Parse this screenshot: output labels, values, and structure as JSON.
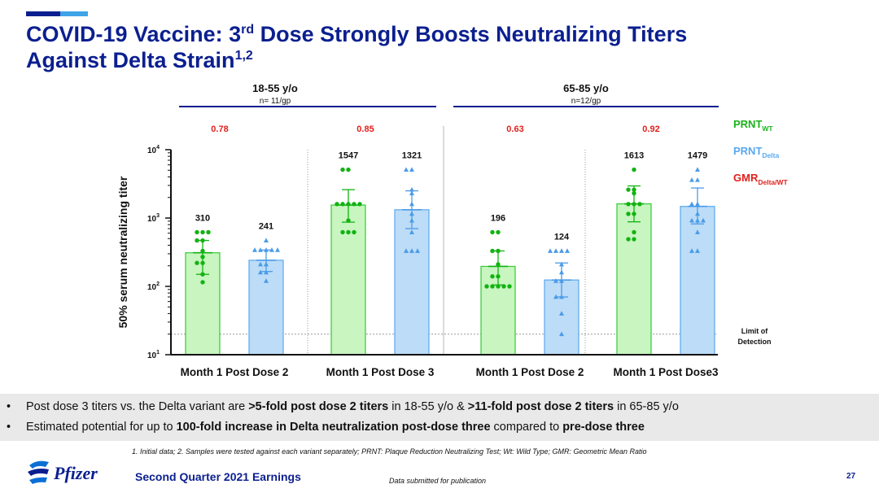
{
  "header": {
    "title_line1_pre": "COVID-19 Vaccine: 3",
    "title_line1_sup": "rd",
    "title_line1_post": " Dose Strongly Boosts Neutralizing Titers",
    "title_line2": "Against Delta Strain",
    "title_line2_sup": "1,2"
  },
  "colors": {
    "wt_fill": "#c8f5c0",
    "wt_edge": "#33cc33",
    "wt_point": "#12b312",
    "delta_fill": "#bcdcf7",
    "delta_edge": "#5aa8ee",
    "delta_point": "#4a9be8",
    "gmr": "#e0201c",
    "navy": "#0b1f8f",
    "wt_legend": "#19b219",
    "delta_legend": "#5aa8ee"
  },
  "chart_data": {
    "type": "bar",
    "y_scale": "log",
    "ylim": [
      10,
      10000
    ],
    "ylabel": "50% serum neutralizing titer",
    "yticks": [
      {
        "value": 10,
        "base": "10",
        "exp": "1"
      },
      {
        "value": 100,
        "base": "10",
        "exp": "2"
      },
      {
        "value": 1000,
        "base": "10",
        "exp": "3"
      },
      {
        "value": 10000,
        "base": "10",
        "exp": "4"
      }
    ],
    "limit_of_detection": 20,
    "lod_label_line1": "Limit of",
    "lod_label_line2": "Detection",
    "age_groups": [
      {
        "label": "18-55 y/o",
        "n": "n= 11/gp"
      },
      {
        "label": "65-85 y/o",
        "n": "n=12/gp"
      }
    ],
    "categories": [
      "Month 1 Post Dose 2",
      "Month 1 Post Dose 3",
      "Month 1 Post Dose 2",
      "Month 1 Post  Dose3"
    ],
    "series": [
      {
        "name": "PRNT",
        "sub": "WT",
        "values": [
          310,
          1547,
          196,
          1613
        ],
        "error_low": [
          150,
          870,
          105,
          880
        ],
        "error_high": [
          470,
          2600,
          330,
          2950
        ],
        "points": [
          [
            620,
            620,
            620,
            470,
            470,
            330,
            270,
            220,
            220,
            150,
            115
          ],
          [
            5100,
            5100,
            1600,
            1600,
            1600,
            1600,
            1600,
            920,
            620,
            620,
            620
          ],
          [
            620,
            620,
            330,
            330,
            210,
            140,
            140,
            100,
            100,
            100,
            100,
            100
          ],
          [
            5100,
            2600,
            2600,
            2300,
            1600,
            1600,
            1600,
            1150,
            1150,
            620,
            490,
            490
          ]
        ]
      },
      {
        "name": "PRNT",
        "sub": "Delta",
        "values": [
          241,
          1321,
          124,
          1479
        ],
        "error_low": [
          165,
          700,
          70,
          820
        ],
        "error_high": [
          340,
          2500,
          220,
          2750
        ],
        "points": [
          [
            470,
            340,
            340,
            340,
            340,
            340,
            210,
            210,
            160,
            160,
            120
          ],
          [
            5100,
            5100,
            2600,
            2300,
            1600,
            1150,
            920,
            620,
            330,
            330,
            330
          ],
          [
            330,
            330,
            330,
            330,
            210,
            160,
            120,
            120,
            70,
            70,
            40,
            20
          ],
          [
            5100,
            3600,
            3600,
            1600,
            1600,
            1150,
            920,
            920,
            920,
            620,
            330,
            330
          ]
        ]
      }
    ],
    "gmr_label": "GMR",
    "gmr_sub": "Delta/WT",
    "gmr_values": [
      "0.78",
      "0.85",
      "0.63",
      "0.92"
    ]
  },
  "bullets": [
    {
      "pre": "Post dose 3 titers vs. the Delta variant are ",
      "b1": ">5-fold post dose 2 titers",
      "mid": " in 18-55 y/o & ",
      "b2": " >11-fold post dose 2 titers",
      "post": " in 65-85 y/o"
    },
    {
      "pre": "Estimated potential for up to ",
      "b1": "100-fold increase in Delta neutralization post-dose three",
      "mid": " compared to ",
      "b2": "pre-dose three",
      "post": ""
    }
  ],
  "bullet_symbol": "•",
  "footnote": "1. Initial data; 2. Samples were tested against each variant separately; PRNT: Plaque Reduction Neutralizing Test; Wt: Wild Type; GMR: Geometric Mean Ratio",
  "footer": {
    "logo_text": "Pfizer",
    "earnings": "Second Quarter 2021 Earnings",
    "subtitle": "Data submitted for publication",
    "page": "27"
  }
}
